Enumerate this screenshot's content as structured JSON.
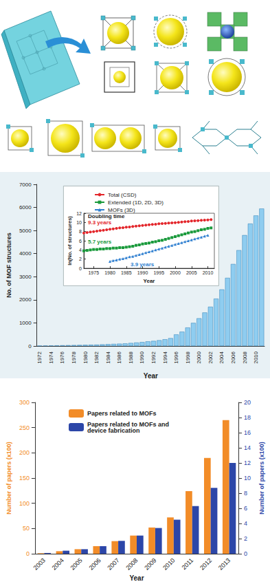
{
  "chart_data": [
    {
      "type": "bar",
      "x_label": "Year",
      "y_label": "No. of MOF structures",
      "categories": [
        "1972",
        null,
        "1974",
        null,
        "1976",
        null,
        "1978",
        null,
        "1980",
        null,
        "1982",
        null,
        "1984",
        null,
        "1986",
        null,
        "1988",
        null,
        "1990",
        null,
        "1992",
        null,
        "1994",
        null,
        "1996",
        null,
        "1998",
        null,
        "2000",
        null,
        "2002",
        null,
        "2004",
        null,
        "2006",
        null,
        "2008",
        null,
        "2010",
        null
      ],
      "values": [
        10,
        15,
        20,
        25,
        30,
        35,
        40,
        45,
        50,
        55,
        60,
        70,
        80,
        90,
        100,
        110,
        130,
        150,
        170,
        200,
        220,
        250,
        290,
        340,
        500,
        620,
        800,
        1000,
        1200,
        1450,
        1700,
        2050,
        2450,
        2950,
        3550,
        4150,
        4800,
        5300,
        5650,
        5950
      ],
      "color": "#8fcdf0",
      "ylim": [
        0,
        7000
      ],
      "yticks": [
        0,
        1000,
        2000,
        3000,
        4000,
        5000,
        6000,
        7000
      ],
      "grid": false
    },
    {
      "type": "line",
      "x_label": "Year",
      "y_label": "ln(No. of structures)",
      "x": [
        1972,
        1973,
        1974,
        1975,
        1976,
        1977,
        1978,
        1979,
        1980,
        1981,
        1982,
        1983,
        1984,
        1985,
        1986,
        1987,
        1988,
        1989,
        1990,
        1991,
        1992,
        1993,
        1994,
        1995,
        1996,
        1997,
        1998,
        1999,
        2000,
        2001,
        2002,
        2003,
        2004,
        2005,
        2006,
        2007,
        2008,
        2009,
        2010,
        2011
      ],
      "series": [
        {
          "name": "Total (CSD)",
          "color": "#e3262b",
          "marker": "circle",
          "line_style": "solid",
          "values": [
            7.7,
            7.8,
            7.9,
            8.0,
            8.1,
            8.2,
            8.3,
            8.4,
            8.5,
            8.6,
            8.7,
            8.8,
            8.85,
            8.95,
            9.0,
            9.1,
            9.2,
            9.25,
            9.35,
            9.4,
            9.5,
            9.55,
            9.6,
            9.7,
            9.75,
            9.8,
            9.85,
            9.9,
            9.95,
            10.0,
            10.1,
            10.15,
            10.2,
            10.3,
            10.35,
            10.4,
            10.45,
            10.5,
            10.55,
            10.6
          ]
        },
        {
          "name": "Extended (1D, 2D, 3D)",
          "color": "#1a9a3c",
          "marker": "square",
          "line_style": "solid",
          "values": [
            3.8,
            3.9,
            4.0,
            4.1,
            4.1,
            4.2,
            4.2,
            4.3,
            4.3,
            4.4,
            4.4,
            4.5,
            4.5,
            4.6,
            4.7,
            4.8,
            5.0,
            5.1,
            5.3,
            5.4,
            5.5,
            5.7,
            5.8,
            6.0,
            6.1,
            6.3,
            6.5,
            6.7,
            6.9,
            7.1,
            7.3,
            7.5,
            7.7,
            7.9,
            8.0,
            8.2,
            8.4,
            8.5,
            8.7,
            8.8
          ]
        },
        {
          "name": "MOFs (3D)",
          "color": "#2f7fd0",
          "marker": "triangle",
          "line_style": "solid",
          "values": [
            null,
            null,
            null,
            null,
            null,
            null,
            null,
            null,
            1.5,
            1.7,
            1.8,
            2.0,
            2.1,
            2.3,
            2.5,
            2.6,
            2.8,
            3.0,
            3.2,
            3.4,
            3.6,
            3.8,
            4.0,
            4.2,
            4.4,
            4.6,
            4.8,
            5.0,
            5.2,
            5.4,
            5.6,
            5.8,
            6.0,
            6.2,
            6.4,
            6.6,
            6.8,
            7.0,
            7.2,
            null
          ]
        }
      ],
      "xlim": [
        1972,
        2012
      ],
      "xticks": [
        1975,
        1980,
        1985,
        1990,
        1995,
        2000,
        2005,
        2010
      ],
      "ylim": [
        0,
        12
      ],
      "yticks": [
        0,
        2,
        4,
        6,
        8,
        10,
        12
      ],
      "grid": false,
      "legend": "upper left",
      "annotations": [
        "Doubling time",
        "9.3 years",
        "5.7 years",
        "3.9 years"
      ]
    },
    {
      "type": "bar",
      "x_label": "Year",
      "y_label": "Number of papers (x100)",
      "y2_label": "Number of papers (x100)",
      "categories": [
        "2003",
        "2004",
        "2005",
        "2006",
        "2007",
        "2008",
        "2009",
        "2010",
        "2011",
        "2012",
        "2013"
      ],
      "series": [
        {
          "name": "Papers related to MOFs",
          "color": "#f28c28",
          "values": [
            1,
            5,
            9,
            15,
            25,
            36,
            52,
            72,
            124,
            190,
            265
          ]
        },
        {
          "name": "Papers related to MOFs and device fabrication",
          "color": "#2c46a8",
          "axis": "y2",
          "values": [
            0.1,
            0.4,
            0.6,
            1.0,
            1.7,
            2.4,
            3.4,
            4.5,
            6.3,
            8.7,
            12.0
          ]
        }
      ],
      "ylim": [
        0,
        300
      ],
      "yticks": [
        0,
        50,
        100,
        150,
        200,
        250,
        300
      ],
      "y2lim": [
        0,
        20
      ],
      "y2ticks": [
        0,
        2,
        4,
        6,
        8,
        10,
        12,
        14,
        16,
        18,
        20
      ],
      "grid": false,
      "legend": "upper left"
    }
  ]
}
